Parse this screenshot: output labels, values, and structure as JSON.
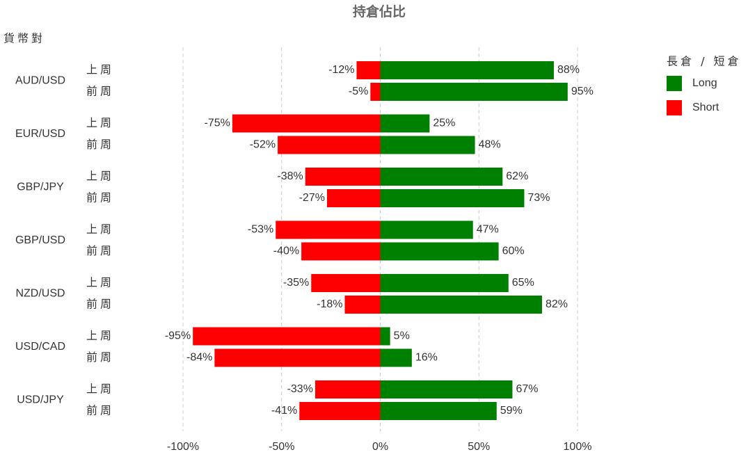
{
  "chart_data": {
    "type": "bar",
    "orientation": "horizontal",
    "title": "持倉佔比",
    "y_label": "貨幣對",
    "legend_title": "長倉 / 短倉",
    "groups": [
      "AUD/USD",
      "EUR/USD",
      "GBP/JPY",
      "GBP/USD",
      "NZD/USD",
      "USD/CAD",
      "USD/JPY"
    ],
    "subcategories": [
      "上周",
      "前周"
    ],
    "series": [
      {
        "name": "Long",
        "color": "#008000",
        "values": [
          88,
          95,
          25,
          48,
          62,
          73,
          47,
          60,
          65,
          82,
          5,
          16,
          67,
          59
        ],
        "value_labels": [
          "88%",
          "95%",
          "25%",
          "48%",
          "62%",
          "73%",
          "47%",
          "60%",
          "65%",
          "82%",
          "5%",
          "16%",
          "67%",
          "59%"
        ]
      },
      {
        "name": "Short",
        "color": "#ff0000",
        "values": [
          -12,
          -5,
          -75,
          -52,
          -38,
          -27,
          -53,
          -40,
          -35,
          -18,
          -95,
          -84,
          -33,
          -41
        ],
        "value_labels": [
          "-12%",
          "-5%",
          "-75%",
          "-52%",
          "-38%",
          "-27%",
          "-53%",
          "-40%",
          "-35%",
          "-18%",
          "-95%",
          "-84%",
          "-33%",
          "-41%"
        ]
      }
    ],
    "xlim": [
      -100,
      100
    ],
    "xticks": [
      {
        "value": -100,
        "label": "-100%"
      },
      {
        "value": -50,
        "label": "-50%"
      },
      {
        "value": 0,
        "label": "0%"
      },
      {
        "value": 50,
        "label": "50%"
      },
      {
        "value": 100,
        "label": "100%"
      }
    ],
    "grid": true,
    "legend": "right"
  }
}
